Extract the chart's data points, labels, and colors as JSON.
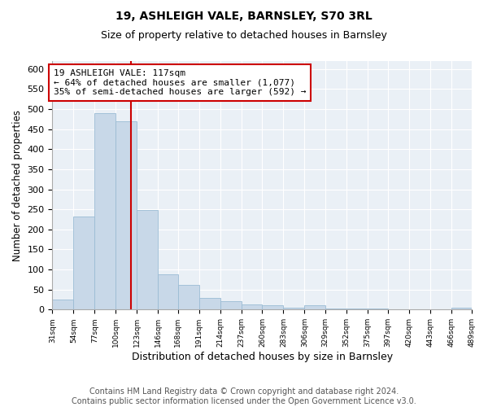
{
  "title": "19, ASHLEIGH VALE, BARNSLEY, S70 3RL",
  "subtitle": "Size of property relative to detached houses in Barnsley",
  "xlabel": "Distribution of detached houses by size in Barnsley",
  "ylabel": "Number of detached properties",
  "bar_color": "#c8d8e8",
  "bar_edge_color": "#9bbcd4",
  "background_color": "#eaf0f6",
  "grid_color": "#ffffff",
  "vline_x": 117,
  "vline_color": "#cc0000",
  "annotation_line1": "19 ASHLEIGH VALE: 117sqm",
  "annotation_line2": "← 64% of detached houses are smaller (1,077)",
  "annotation_line3": "35% of semi-detached houses are larger (592) →",
  "annotation_box_color": "#ffffff",
  "annotation_box_edge_color": "#cc0000",
  "bin_edges": [
    31,
    54,
    77,
    100,
    123,
    146,
    168,
    191,
    214,
    237,
    260,
    283,
    306,
    329,
    352,
    375,
    397,
    420,
    443,
    466,
    489
  ],
  "bin_heights": [
    25,
    232,
    490,
    470,
    248,
    88,
    62,
    30,
    22,
    13,
    10,
    5,
    10,
    3,
    3,
    2,
    1,
    1,
    1,
    5
  ],
  "ylim": [
    0,
    620
  ],
  "yticks": [
    0,
    50,
    100,
    150,
    200,
    250,
    300,
    350,
    400,
    450,
    500,
    550,
    600
  ],
  "footer_text": "Contains HM Land Registry data © Crown copyright and database right 2024.\nContains public sector information licensed under the Open Government Licence v3.0.",
  "footer_fontsize": 7.0,
  "title_fontsize": 10,
  "subtitle_fontsize": 9,
  "ylabel_fontsize": 8.5,
  "xlabel_fontsize": 9
}
